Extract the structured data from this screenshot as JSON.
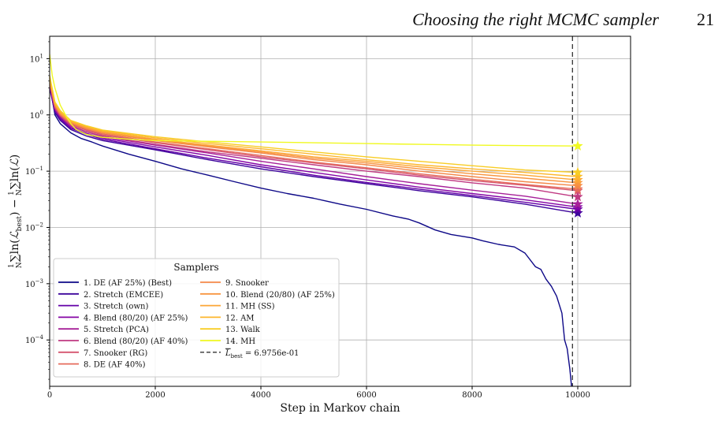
{
  "header": {
    "running_title": "Choosing the right MCMC sampler",
    "page_number": "21"
  },
  "chart_data": {
    "type": "line",
    "xlabel": "Step in Markov chain",
    "ylabel": "1/N ∑ln(L_best) − 1/N ∑ln(L)",
    "ylabel_display": {
      "part1": "∑ln(",
      "L1": "ℒ",
      "sub": "best",
      "part2": ") − ",
      "part3": "∑ln(",
      "L2": "ℒ",
      "part4": ")",
      "frac_num": "1",
      "frac_den": "N"
    },
    "xlim": [
      0,
      11000
    ],
    "ylim": [
      1.5e-05,
      25
    ],
    "yscale": "log",
    "grid": true,
    "x_ticks": [
      0,
      2000,
      4000,
      6000,
      8000,
      10000
    ],
    "x_tick_labels": [
      "0",
      "2000",
      "4000",
      "6000",
      "8000",
      "10000"
    ],
    "y_ticks": [
      0.0001,
      0.001,
      0.01,
      0.1,
      1,
      10
    ],
    "y_tick_labels": [
      {
        "base": "10",
        "exp": "−4"
      },
      {
        "base": "10",
        "exp": "−3"
      },
      {
        "base": "10",
        "exp": "−2"
      },
      {
        "base": "10",
        "exp": "−1"
      },
      {
        "base": "10",
        "exp": "0"
      },
      {
        "base": "10",
        "exp": "1"
      }
    ],
    "vline": {
      "x": 9900,
      "style": "dashed",
      "color": "#333333"
    },
    "legend": {
      "title": "Samplers",
      "position": "lower-left",
      "vline_entry": {
        "prefix": "L",
        "sub": "best",
        "suffix": " = 6.9756e-01"
      }
    },
    "series": [
      {
        "name": "1. DE (AF 25%) (Best)",
        "color": "#0d0887",
        "x": [
          0,
          100,
          200,
          400,
          600,
          800,
          1000,
          1500,
          2000,
          2500,
          3000,
          3500,
          4000,
          4500,
          5000,
          5500,
          6000,
          6500,
          6800,
          7000,
          7300,
          7600,
          8000,
          8200,
          8500,
          8800,
          9000,
          9200,
          9300,
          9400,
          9500,
          9600,
          9700,
          9750,
          9800,
          9850,
          9900
        ],
        "y": [
          3.5,
          1.0,
          0.7,
          0.48,
          0.38,
          0.33,
          0.28,
          0.2,
          0.15,
          0.11,
          0.085,
          0.065,
          0.05,
          0.04,
          0.033,
          0.026,
          0.021,
          0.016,
          0.014,
          0.012,
          0.009,
          0.0075,
          0.0065,
          0.0058,
          0.005,
          0.0045,
          0.0035,
          0.002,
          0.0018,
          0.0012,
          0.0009,
          0.0006,
          0.0003,
          0.0001,
          7e-05,
          3e-05,
          1e-05
        ],
        "end": null
      },
      {
        "name": "2. Stretch (EMCEE)",
        "color": "#3c049b",
        "x": [
          0,
          100,
          200,
          400,
          700,
          1000,
          2000,
          3000,
          4000,
          5000,
          6000,
          7000,
          8000,
          9000,
          10000
        ],
        "y": [
          3.0,
          1.1,
          0.8,
          0.55,
          0.42,
          0.35,
          0.24,
          0.16,
          0.11,
          0.08,
          0.06,
          0.045,
          0.035,
          0.026,
          0.018
        ],
        "end": 0.018
      },
      {
        "name": "3. Stretch (own)",
        "color": "#6300a7",
        "x": [
          0,
          100,
          200,
          400,
          700,
          1000,
          2000,
          3000,
          4000,
          5000,
          6000,
          7000,
          8000,
          9000,
          10000
        ],
        "y": [
          3.2,
          1.2,
          0.85,
          0.58,
          0.45,
          0.37,
          0.25,
          0.17,
          0.12,
          0.085,
          0.063,
          0.048,
          0.037,
          0.028,
          0.021
        ],
        "end": 0.021
      },
      {
        "name": "4. Blend (80/20) (AF 25%)",
        "color": "#8606a6",
        "x": [
          0,
          100,
          200,
          400,
          700,
          1000,
          2000,
          3000,
          4000,
          5000,
          6000,
          7000,
          8000,
          9000,
          10000
        ],
        "y": [
          3.3,
          1.2,
          0.9,
          0.6,
          0.47,
          0.39,
          0.27,
          0.19,
          0.13,
          0.095,
          0.07,
          0.052,
          0.04,
          0.031,
          0.023
        ],
        "end": 0.023
      },
      {
        "name": "5. Stretch (PCA)",
        "color": "#a62098",
        "x": [
          0,
          100,
          200,
          400,
          700,
          1000,
          2000,
          3000,
          4000,
          5000,
          6000,
          7000,
          8000,
          9000,
          10000
        ],
        "y": [
          3.5,
          1.3,
          0.95,
          0.63,
          0.5,
          0.41,
          0.29,
          0.21,
          0.15,
          0.11,
          0.08,
          0.06,
          0.046,
          0.036,
          0.026
        ],
        "end": 0.026
      },
      {
        "name": "6. Blend (80/20) (AF 40%)",
        "color": "#c03a83",
        "x": [
          0,
          100,
          200,
          400,
          700,
          1000,
          2000,
          3000,
          4000,
          5000,
          6000,
          7000,
          8000,
          9000,
          10000
        ],
        "y": [
          3.6,
          1.3,
          0.95,
          0.65,
          0.5,
          0.42,
          0.3,
          0.22,
          0.17,
          0.13,
          0.1,
          0.08,
          0.062,
          0.05,
          0.035
        ],
        "end": 0.035
      },
      {
        "name": "7. Snooker (RG)",
        "color": "#d5546e",
        "x": [
          0,
          100,
          200,
          400,
          700,
          1000,
          2000,
          3000,
          4000,
          5000,
          6000,
          7000,
          8000,
          9000,
          10000
        ],
        "y": [
          3.8,
          1.4,
          1.0,
          0.68,
          0.53,
          0.44,
          0.32,
          0.24,
          0.18,
          0.14,
          0.11,
          0.085,
          0.068,
          0.056,
          0.045
        ],
        "end": 0.045
      },
      {
        "name": "8. DE (AF 40%)",
        "color": "#e66c5c",
        "x": [
          0,
          100,
          200,
          400,
          700,
          1000,
          2000,
          3000,
          4000,
          5000,
          6000,
          7000,
          8000,
          9000,
          10000
        ],
        "y": [
          3.8,
          1.4,
          1.0,
          0.7,
          0.55,
          0.46,
          0.33,
          0.25,
          0.19,
          0.145,
          0.115,
          0.09,
          0.072,
          0.058,
          0.048
        ],
        "end": 0.048
      },
      {
        "name": "9. Snooker",
        "color": "#f48849",
        "x": [
          0,
          100,
          200,
          400,
          700,
          1000,
          2000,
          3000,
          4000,
          5000,
          6000,
          7000,
          8000,
          9000,
          10000
        ],
        "y": [
          4.0,
          1.5,
          1.05,
          0.72,
          0.57,
          0.48,
          0.35,
          0.27,
          0.21,
          0.16,
          0.13,
          0.1,
          0.08,
          0.065,
          0.055
        ],
        "end": 0.055
      },
      {
        "name": "10. Blend (20/80) (AF 25%)",
        "color": "#f89540",
        "x": [
          0,
          100,
          200,
          400,
          700,
          1000,
          2000,
          3000,
          4000,
          5000,
          6000,
          7000,
          8000,
          9000,
          10000
        ],
        "y": [
          4.0,
          1.5,
          1.05,
          0.74,
          0.58,
          0.49,
          0.36,
          0.28,
          0.22,
          0.17,
          0.14,
          0.11,
          0.09,
          0.075,
          0.062
        ],
        "end": 0.062
      },
      {
        "name": "11. MH (SS)",
        "color": "#fca636",
        "x": [
          0,
          100,
          200,
          400,
          700,
          1000,
          2000,
          3000,
          4000,
          5000,
          6000,
          7000,
          8000,
          9000,
          10000
        ],
        "y": [
          4.5,
          1.6,
          1.1,
          0.76,
          0.6,
          0.5,
          0.37,
          0.29,
          0.23,
          0.18,
          0.15,
          0.12,
          0.1,
          0.085,
          0.07
        ],
        "end": 0.07
      },
      {
        "name": "12. AM",
        "color": "#fdb72d",
        "x": [
          0,
          100,
          200,
          400,
          700,
          1000,
          2000,
          3000,
          4000,
          5000,
          6000,
          7000,
          8000,
          9000,
          10000
        ],
        "y": [
          4.5,
          1.6,
          1.15,
          0.78,
          0.62,
          0.52,
          0.39,
          0.31,
          0.25,
          0.2,
          0.16,
          0.13,
          0.11,
          0.095,
          0.08
        ],
        "end": 0.08
      },
      {
        "name": "13. Walk",
        "color": "#f8cd25",
        "x": [
          0,
          100,
          200,
          400,
          700,
          1000,
          2000,
          3000,
          4000,
          5000,
          6000,
          7000,
          8000,
          9000,
          10000
        ],
        "y": [
          5.0,
          1.7,
          1.2,
          0.8,
          0.64,
          0.54,
          0.41,
          0.33,
          0.27,
          0.22,
          0.18,
          0.15,
          0.125,
          0.105,
          0.095
        ],
        "end": 0.095
      },
      {
        "name": "14. MH",
        "color": "#f0f921",
        "x": [
          0,
          50,
          100,
          200,
          300,
          400,
          500,
          700,
          1000,
          1500,
          2000,
          3000,
          4000,
          5000,
          6000,
          7000,
          8000,
          9000,
          10000
        ],
        "y": [
          12,
          5,
          3,
          1.5,
          1.0,
          0.7,
          0.55,
          0.45,
          0.4,
          0.37,
          0.35,
          0.34,
          0.33,
          0.32,
          0.31,
          0.3,
          0.29,
          0.285,
          0.28
        ],
        "end": 0.28
      }
    ]
  }
}
